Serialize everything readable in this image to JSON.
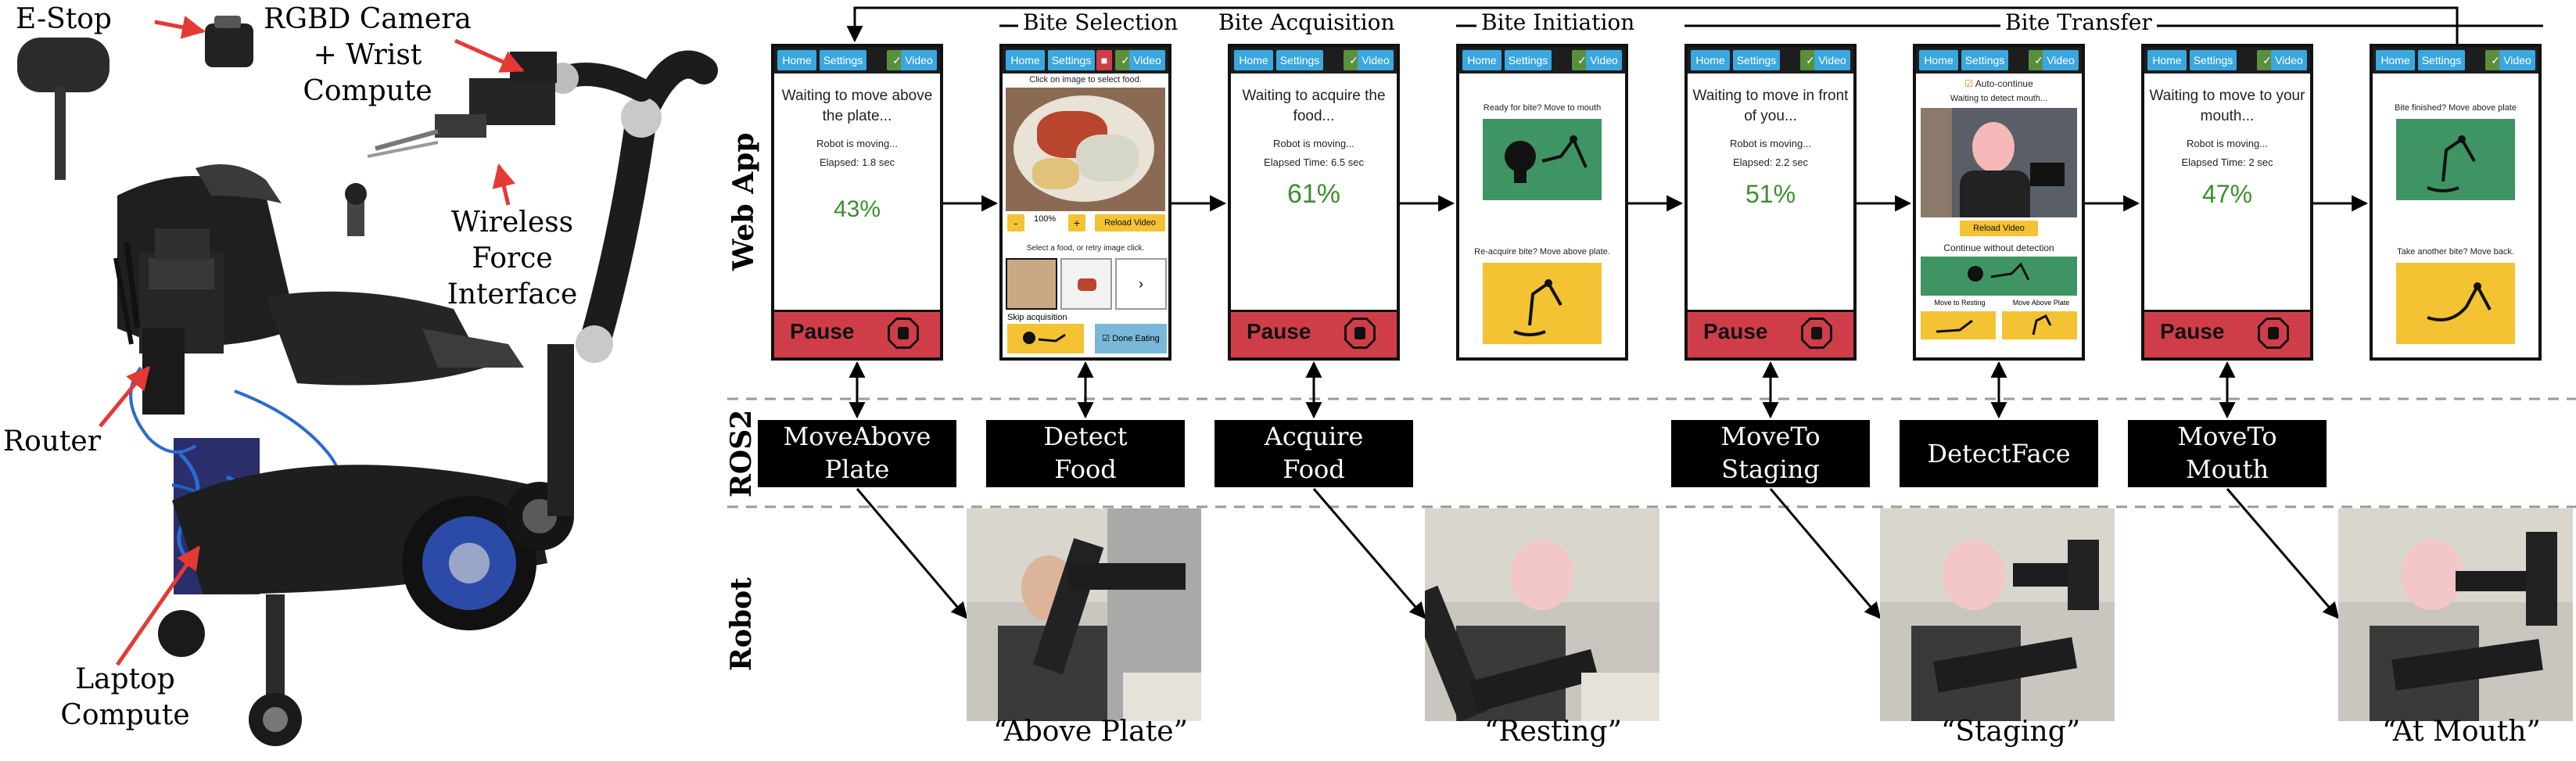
{
  "hardware_labels": {
    "estop": "E-Stop",
    "camera": [
      "RGBD Camera",
      "+ Wrist",
      "Compute"
    ],
    "force": [
      "Wireless",
      "Force",
      "Interface"
    ],
    "router": "Router",
    "laptop": [
      "Laptop",
      "Compute"
    ]
  },
  "row_labels": {
    "web_app": "Web App",
    "ros2": "ROS2",
    "robot": "Robot"
  },
  "phases": {
    "bite_selection": "Bite Selection",
    "bite_acquisition": "Bite Acquisition",
    "bite_initiation": "Bite Initiation",
    "bite_transfer": "Bite Transfer"
  },
  "nav": {
    "home": "Home",
    "settings": "Settings",
    "video": "Video"
  },
  "pause_label": "Pause",
  "screens": {
    "move_above_plate": {
      "title": [
        "Waiting to move above",
        "the plate..."
      ],
      "status": "Robot is moving...",
      "elapsed": "Elapsed: 1.8 sec",
      "progress": 43,
      "progress_label": "43%"
    },
    "bite_selection": {
      "instruction": "Click on image to select food.",
      "zoom": "100%",
      "minus": "-",
      "plus": "+",
      "reload": "Reload Video",
      "select_prompt": "Select a food, or retry image click.",
      "next": "›",
      "skip": "Skip acquisition",
      "done": "Done Eating"
    },
    "acquire_food": {
      "title": [
        "Waiting to acquire the",
        "food..."
      ],
      "status": "Robot is moving...",
      "elapsed": "Elapsed Time: 6.5 sec",
      "progress": 61,
      "progress_label": "61%"
    },
    "bite_initiation": {
      "prompt1": "Ready for bite? Move to mouth",
      "prompt2": "Re-acquire bite? Move above plate."
    },
    "move_to_staging": {
      "title": [
        "Waiting to move in front",
        "of you..."
      ],
      "status": "Robot is moving...",
      "elapsed": "Elapsed: 2.2 sec",
      "progress": 51,
      "progress_label": "51%"
    },
    "detect_face": {
      "auto_continue": "Auto-continue",
      "waiting": "Waiting to detect mouth...",
      "reload": "Reload Video",
      "continue": "Continue without detection",
      "move_resting": "Move to Resting",
      "move_above": "Move Above Plate"
    },
    "move_to_mouth": {
      "title": [
        "Waiting to move to your",
        "mouth..."
      ],
      "status": "Robot is moving...",
      "elapsed": "Elapsed Time: 2 sec",
      "progress": 47,
      "progress_label": "47%"
    },
    "bite_done": {
      "prompt1": "Bite finished? Move above plate",
      "prompt2": "Take another bite? Move back."
    }
  },
  "ros2_nodes": {
    "move_above_plate": [
      "MoveAbove",
      "Plate"
    ],
    "detect_food": [
      "Detect",
      "Food"
    ],
    "acquire_food": [
      "Acquire",
      "Food"
    ],
    "move_to_staging": [
      "MoveTo",
      "Staging"
    ],
    "detect_face": [
      "DetectFace"
    ],
    "move_to_mouth": [
      "MoveTo",
      "Mouth"
    ]
  },
  "robot_captions": {
    "above_plate": "“Above Plate”",
    "resting": "“Resting”",
    "staging": "“Staging”",
    "at_mouth": "“At Mouth”"
  },
  "colors": {
    "nav_blue": "#3aa7df",
    "pause_red": "#cf3e48",
    "progress_green": "#3b8f2e",
    "card_green": "#3f9463",
    "card_yellow": "#f3c333",
    "arrow_red": "#e53935",
    "ros_box": "#000000"
  }
}
